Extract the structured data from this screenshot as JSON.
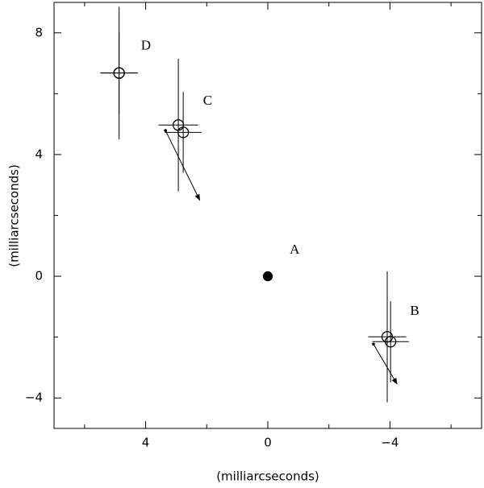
{
  "chart_data": {
    "type": "scatter",
    "xlabel": "(milliarcseconds)",
    "ylabel": "(milliarcseconds)",
    "xlim": [
      7,
      -7
    ],
    "ylim": [
      -5,
      9
    ],
    "xticks": [
      4,
      0,
      {
        "value": -4,
        "label": "−4"
      }
    ],
    "yticks": [
      8,
      4,
      0,
      {
        "value": -4,
        "label": "−4"
      }
    ],
    "xminor_ticks": [
      6,
      2,
      -2,
      -6
    ],
    "yminor_ticks": [
      6,
      2,
      -2
    ],
    "series": [
      {
        "marker": "filled",
        "color": "#000000",
        "x": [
          0
        ],
        "y": [
          0
        ]
      },
      {
        "marker": "open",
        "color": "#000000",
        "x": [
          4.87,
          4.87,
          2.93,
          2.77,
          -3.91,
          -4.02
        ],
        "y": [
          6.68,
          6.68,
          4.97,
          4.73,
          -1.99,
          -2.15
        ],
        "xerr": [
          0.62,
          0.6,
          0.65,
          0.6,
          0.62,
          0.6
        ],
        "yerr": [
          2.18,
          1.33,
          2.18,
          1.33,
          2.15,
          1.33
        ]
      }
    ],
    "arrows": [
      {
        "x": [
          3.35,
          2.23
        ],
        "y": [
          4.79,
          2.5
        ]
      },
      {
        "x": [
          -3.46,
          -4.23
        ],
        "y": [
          -2.23,
          -3.54
        ]
      }
    ],
    "annotations": [
      {
        "text": "A",
        "x": -0.88,
        "y": 0.85
      },
      {
        "text": "B",
        "x": -4.81,
        "y": -1.17
      },
      {
        "text": "C",
        "x": 1.97,
        "y": 5.74
      },
      {
        "text": "D",
        "x": 3.99,
        "y": 7.55
      }
    ]
  }
}
